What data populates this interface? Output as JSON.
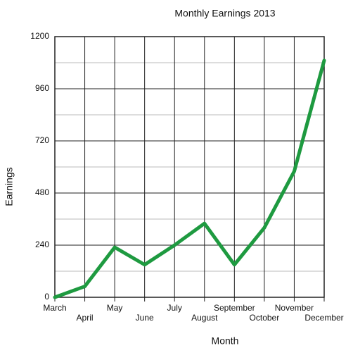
{
  "chart_data": {
    "type": "line",
    "title": "Monthly Earnings 2013",
    "x_label": "Month",
    "y_label": "Earnings",
    "categories": [
      "March",
      "April",
      "May",
      "June",
      "July",
      "August",
      "September",
      "October",
      "November",
      "December"
    ],
    "values": [
      0,
      50,
      230,
      150,
      240,
      340,
      150,
      320,
      580,
      1090
    ],
    "color": "#1e9a40",
    "ylim": [
      0,
      1200
    ],
    "yticks": [
      0,
      240,
      480,
      720,
      960,
      1200
    ],
    "grid": true
  }
}
